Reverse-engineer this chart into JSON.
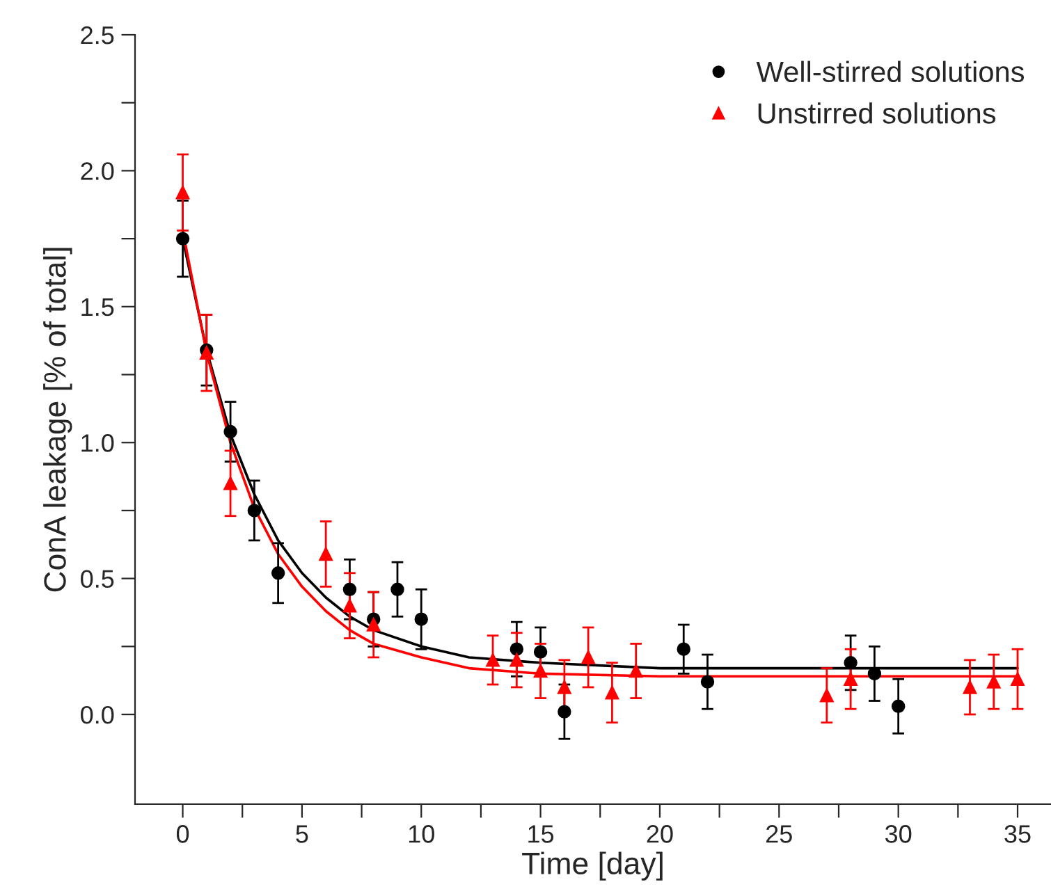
{
  "chart_data": {
    "type": "scatter",
    "xlabel": "Time [day]",
    "ylabel": "ConA leakage [% of total]",
    "xlim": [
      -2,
      36.4
    ],
    "ylim": [
      -0.33,
      2.5
    ],
    "xticks": [
      0,
      {
        "value": 2.5,
        "label": null
      },
      5,
      {
        "value": 7.5,
        "label": null
      },
      10,
      {
        "value": 12.5,
        "label": null
      },
      15,
      {
        "value": 17.5,
        "label": null
      },
      20,
      {
        "value": 22.5,
        "label": null
      },
      25,
      {
        "value": 27.5,
        "label": null
      },
      30,
      {
        "value": 32.5,
        "label": null
      },
      35
    ],
    "yticks": [
      {
        "value": 0,
        "label": "0.0"
      },
      {
        "value": 0.25,
        "label": null
      },
      {
        "value": 0.5,
        "label": "0.5"
      },
      {
        "value": 0.75,
        "label": null
      },
      {
        "value": 1,
        "label": "1.0"
      },
      {
        "value": 1.25,
        "label": null
      },
      {
        "value": 1.5,
        "label": "1.5"
      },
      {
        "value": 1.75,
        "label": null
      },
      {
        "value": 2,
        "label": "2.0"
      },
      {
        "value": 2.25,
        "label": null
      },
      {
        "value": 2.5,
        "label": "2.5"
      }
    ],
    "grid": false,
    "legend": "top right",
    "series": [
      {
        "name": "Well-stirred solutions",
        "color": "#000000",
        "marker": "circle",
        "x": [
          0,
          1,
          2,
          3,
          4,
          7,
          8,
          9,
          10,
          14,
          15,
          16,
          21,
          22,
          28,
          29,
          30
        ],
        "values": [
          1.75,
          1.34,
          1.04,
          0.75,
          0.52,
          0.46,
          0.35,
          0.46,
          0.35,
          0.24,
          0.23,
          0.01,
          0.24,
          0.12,
          0.19,
          0.15,
          0.03
        ],
        "errors": [
          0.14,
          0.13,
          0.11,
          0.11,
          0.11,
          0.11,
          0.1,
          0.1,
          0.11,
          0.1,
          0.09,
          0.1,
          0.09,
          0.1,
          0.1,
          0.1,
          0.1
        ]
      },
      {
        "name": "Unstirred solutions",
        "color": "#ff0000",
        "marker": "triangle",
        "x": [
          0,
          1,
          2,
          6,
          7,
          8,
          13,
          14,
          15,
          16,
          17,
          18,
          19,
          27,
          28,
          33,
          34,
          35
        ],
        "values": [
          1.92,
          1.33,
          0.85,
          0.59,
          0.4,
          0.33,
          0.2,
          0.2,
          0.16,
          0.1,
          0.21,
          0.08,
          0.16,
          0.07,
          0.13,
          0.1,
          0.12,
          0.13
        ],
        "errors": [
          0.14,
          0.14,
          0.12,
          0.12,
          0.12,
          0.12,
          0.09,
          0.1,
          0.1,
          0.1,
          0.11,
          0.11,
          0.1,
          0.1,
          0.11,
          0.1,
          0.1,
          0.11
        ]
      },
      {
        "type": "line",
        "color": "#000000",
        "marker": "none",
        "x": [
          0,
          1,
          2,
          3,
          4,
          5,
          6,
          7,
          8,
          10,
          12,
          15,
          20,
          25,
          30,
          35
        ],
        "values": [
          1.75,
          1.34,
          1.03,
          0.81,
          0.64,
          0.52,
          0.43,
          0.36,
          0.31,
          0.25,
          0.21,
          0.19,
          0.17,
          0.17,
          0.17,
          0.17
        ]
      },
      {
        "type": "line",
        "color": "#ff0000",
        "marker": "none",
        "x": [
          0,
          1,
          2,
          3,
          4,
          5,
          6,
          7,
          8,
          10,
          12,
          15,
          20,
          25,
          30,
          35
        ],
        "values": [
          1.78,
          1.33,
          1.0,
          0.76,
          0.59,
          0.47,
          0.38,
          0.31,
          0.26,
          0.21,
          0.17,
          0.15,
          0.14,
          0.14,
          0.14,
          0.14
        ]
      }
    ]
  }
}
